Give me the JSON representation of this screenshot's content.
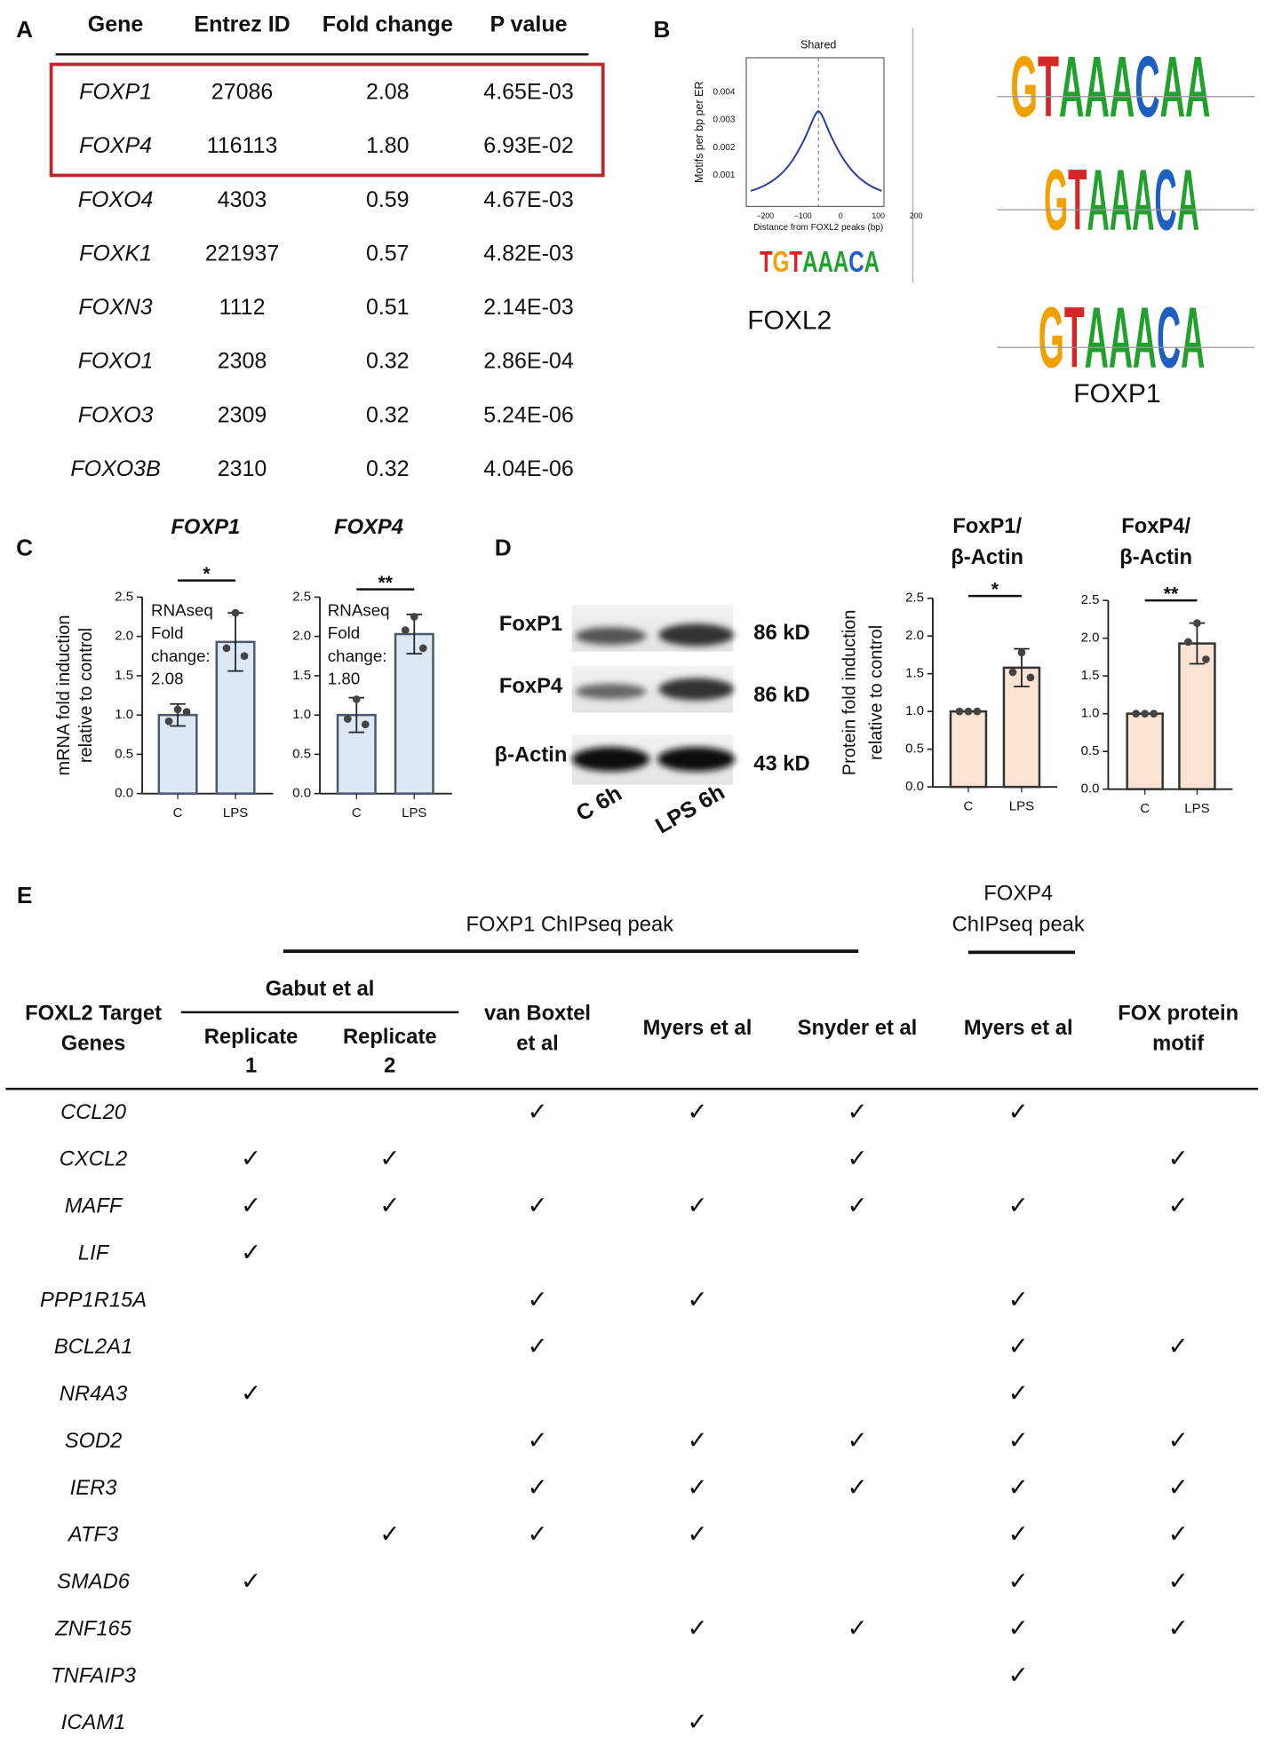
{
  "panel_labels": [
    "A",
    "B",
    "C",
    "D",
    "E"
  ],
  "table_a": {
    "columns": [
      "Gene",
      "Entrez ID",
      "Fold change",
      "P value"
    ],
    "rows": [
      [
        "FOXP1",
        "27086",
        "2.08",
        "4.65E-03"
      ],
      [
        "FOXP4",
        "116113",
        "1.80",
        "6.93E-02"
      ],
      [
        "FOXO4",
        "4303",
        "0.59",
        "4.67E-03"
      ],
      [
        "FOXK1",
        "221937",
        "0.57",
        "4.82E-03"
      ],
      [
        "FOXN3",
        "1112",
        "0.51",
        "2.14E-03"
      ],
      [
        "FOXO1",
        "2308",
        "0.32",
        "2.86E-04"
      ],
      [
        "FOXO3",
        "2309",
        "0.32",
        "5.24E-06"
      ],
      [
        "FOXO3B",
        "2310",
        "0.32",
        "4.04E-06"
      ]
    ]
  },
  "panel_b": {
    "plot_title": "Shared",
    "y_label": "Motifs per bp per ER",
    "x_label": "Distance from FOXL2 peaks (bp)",
    "yticks": [
      "0.004",
      "0.003",
      "0.002",
      "0.001"
    ],
    "xticks": [
      "−200",
      "−100",
      "0",
      "100",
      "200"
    ],
    "motif": "TGTAAACA",
    "caption_left": "FOXL2",
    "logos": [
      "GTAAACAA",
      "GTAAACA",
      "GTAAACA"
    ],
    "caption_right": "FOXP1"
  },
  "chart_data": [
    {
      "type": "bar",
      "title": [
        "FOXP1"
      ],
      "y_label": [
        "mRNA fold induction",
        "relative to control"
      ],
      "categories": [
        "C",
        "LPS"
      ],
      "values": [
        1.0,
        1.93
      ],
      "errors": [
        0.14,
        0.37
      ],
      "points": [
        [
          1.07,
          0.92,
          1.04
        ],
        [
          2.3,
          1.85,
          1.75
        ]
      ],
      "color": "#dce8f4",
      "edge": "#4a5a6e",
      "annotation": [
        "RNAseq",
        "Fold",
        "change:",
        "2.08"
      ],
      "significance": "*",
      "ylim": [
        0,
        2.5
      ],
      "yticks": [
        {
          "value": 0,
          "label": "0.0"
        },
        0.5,
        {
          "value": 1,
          "label": "1.0"
        },
        1.5,
        {
          "value": 2,
          "label": "2.0"
        },
        2.5
      ]
    },
    {
      "type": "bar",
      "title": [
        "FOXP4"
      ],
      "categories": [
        "C",
        "LPS"
      ],
      "values": [
        1.0,
        2.03
      ],
      "errors": [
        0.22,
        0.25
      ],
      "points": [
        [
          1.2,
          0.95,
          0.88
        ],
        [
          2.25,
          2.08,
          1.85
        ]
      ],
      "color": "#dce8f4",
      "edge": "#4a5a6e",
      "annotation": [
        "RNAseq",
        "Fold",
        "change:",
        "1.80"
      ],
      "significance": "**",
      "ylim": [
        0,
        2.5
      ],
      "yticks": [
        {
          "value": 0,
          "label": "0.0"
        },
        0.5,
        {
          "value": 1,
          "label": "1.0"
        },
        1.5,
        {
          "value": 2,
          "label": "2.0"
        },
        2.5
      ]
    },
    {
      "type": "bar",
      "title": [
        "FoxP1/",
        "β-Actin"
      ],
      "y_label": [
        "Protein fold induction",
        "relative to control"
      ],
      "categories": [
        "C",
        "LPS"
      ],
      "values": [
        1.0,
        1.58
      ],
      "errors": [
        0.0,
        0.25
      ],
      "points": [
        [
          1.0,
          1.0,
          1.0
        ],
        [
          1.78,
          1.52,
          1.45
        ]
      ],
      "color": "#fbe3d3",
      "edge": "#333333",
      "significance": "*",
      "ylim": [
        0,
        2.5
      ],
      "yticks": [
        {
          "value": 0,
          "label": "0.0"
        },
        0.5,
        {
          "value": 1,
          "label": "1.0"
        },
        1.5,
        {
          "value": 2,
          "label": "2.0"
        },
        2.5
      ]
    },
    {
      "type": "bar",
      "title": [
        "FoxP4/",
        "β-Actin"
      ],
      "categories": [
        "C",
        "LPS"
      ],
      "values": [
        1.0,
        1.93
      ],
      "errors": [
        0.0,
        0.27
      ],
      "points": [
        [
          1.0,
          1.0,
          1.0
        ],
        [
          2.2,
          1.95,
          1.72
        ]
      ],
      "color": "#fbe3d3",
      "edge": "#333333",
      "significance": "**",
      "ylim": [
        0,
        2.5
      ],
      "yticks": [
        {
          "value": 0,
          "label": "0.0"
        },
        0.5,
        {
          "value": 1,
          "label": "1.0"
        },
        1.5,
        {
          "value": 2,
          "label": "2.0"
        },
        2.5
      ]
    }
  ],
  "panel_d_blot": {
    "bands": [
      "FoxP1",
      "FoxP4",
      "β-Actin"
    ],
    "sizes": [
      "86 kD",
      "86 kD",
      "43 kD"
    ],
    "lanes": [
      "C 6h",
      "LPS 6h"
    ]
  },
  "table_e": {
    "top_header_left": "FOXP1 ChIPseq peak",
    "top_header_right": [
      "FOXP4",
      "ChIPseq peak"
    ],
    "group": "Gabut et al",
    "columns": [
      [
        "FOXL2 Target",
        "Genes"
      ],
      [
        "Replicate",
        "1"
      ],
      [
        "Replicate",
        "2"
      ],
      [
        "van Boxtel",
        "et al"
      ],
      [
        "Myers et al"
      ],
      [
        "Snyder et al"
      ],
      [
        "Myers et al"
      ],
      [
        "FOX protein",
        "motif"
      ]
    ],
    "rows": [
      [
        "CCL20",
        null,
        null,
        "✓",
        "✓",
        "✓",
        "✓",
        null
      ],
      [
        "CXCL2",
        "✓",
        "✓",
        null,
        null,
        "✓",
        null,
        "✓"
      ],
      [
        "MAFF",
        "✓",
        "✓",
        "✓",
        "✓",
        "✓",
        "✓",
        "✓"
      ],
      [
        "LIF",
        "✓",
        null,
        null,
        null,
        null,
        null,
        null
      ],
      [
        "PPP1R15A",
        null,
        null,
        "✓",
        "✓",
        null,
        "✓",
        null
      ],
      [
        "BCL2A1",
        null,
        null,
        "✓",
        null,
        null,
        "✓",
        "✓"
      ],
      [
        "NR4A3",
        "✓",
        null,
        null,
        null,
        null,
        "✓",
        null
      ],
      [
        "SOD2",
        null,
        null,
        "✓",
        "✓",
        "✓",
        "✓",
        "✓"
      ],
      [
        "IER3",
        null,
        null,
        "✓",
        "✓",
        "✓",
        "✓",
        "✓"
      ],
      [
        "ATF3",
        null,
        "✓",
        "✓",
        "✓",
        null,
        "✓",
        "✓"
      ],
      [
        "SMAD6",
        "✓",
        null,
        null,
        null,
        null,
        "✓",
        "✓"
      ],
      [
        "ZNF165",
        null,
        null,
        null,
        "✓",
        "✓",
        "✓",
        "✓"
      ],
      [
        "TNFAIP3",
        null,
        null,
        null,
        null,
        null,
        "✓",
        null
      ],
      [
        "ICAM1",
        null,
        null,
        null,
        "✓",
        null,
        null,
        null
      ]
    ]
  }
}
